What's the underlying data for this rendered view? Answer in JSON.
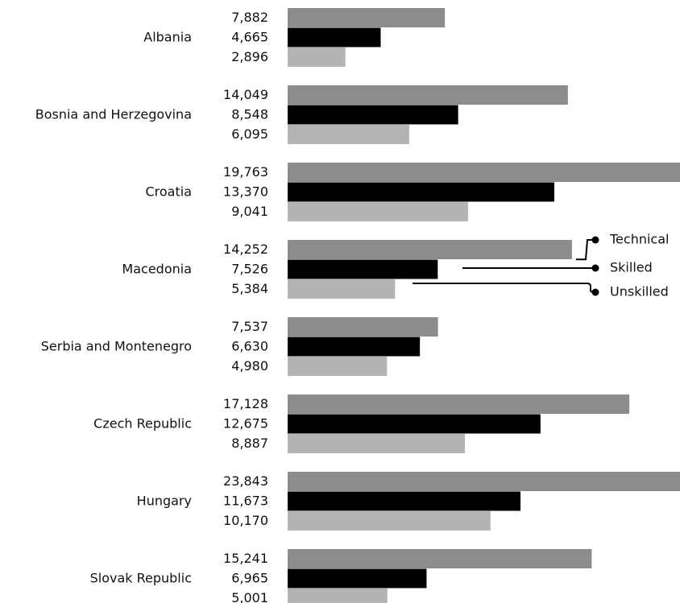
{
  "chart_data": {
    "type": "bar",
    "orientation": "horizontal",
    "title": "",
    "xlabel": "",
    "ylabel": "",
    "grid": false,
    "legend_position": "right",
    "categories": [
      "Albania",
      "Bosnia and Herzegovina",
      "Croatia",
      "Macedonia",
      "Serbia and Montenegro",
      "Czech Republic",
      "Hungary",
      "Slovak Republic"
    ],
    "series": [
      {
        "name": "Technical",
        "color": "#8c8c8c",
        "values": [
          7882,
          14049,
          19763,
          14252,
          7537,
          17128,
          23843,
          15241
        ],
        "labels": [
          "7,882",
          "14,049",
          "19,763",
          "14,252",
          "7,537",
          "17,128",
          "23,843",
          "15,241"
        ]
      },
      {
        "name": "Skilled",
        "color": "#000000",
        "values": [
          4665,
          8548,
          13370,
          7526,
          6630,
          12675,
          11673,
          6965
        ],
        "labels": [
          "4,665",
          "8,548",
          "13,370",
          "7,526",
          "6,630",
          "12,675",
          "11,673",
          "6,965"
        ]
      },
      {
        "name": "Unskilled",
        "color": "#b4b4b4",
        "values": [
          2896,
          6095,
          9041,
          5384,
          4980,
          8887,
          10170,
          5001
        ],
        "labels": [
          "2,896",
          "6,095",
          "9,041",
          "5,384",
          "4,980",
          "8,887",
          "10,170",
          "5,001"
        ]
      }
    ]
  }
}
